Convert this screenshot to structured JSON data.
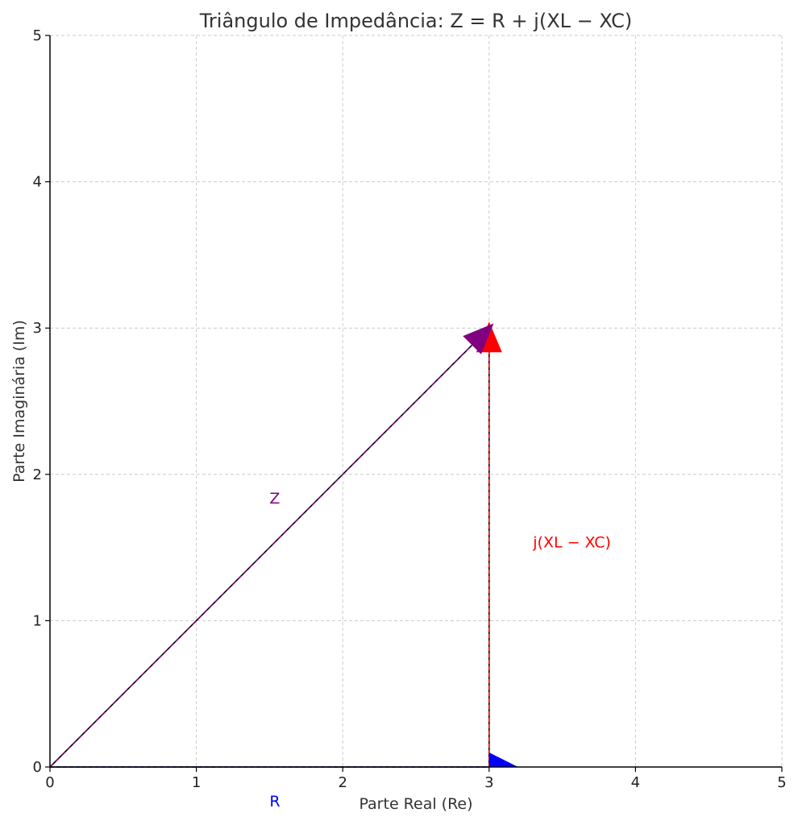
{
  "chart_data": {
    "type": "line",
    "title": "Triângulo de Impedância: Z = R + j(XL − XC)",
    "xlabel": "Parte Real (Re)",
    "ylabel": "Parte Imaginária (Im)",
    "xlim": [
      0,
      5
    ],
    "ylim": [
      0,
      5
    ],
    "xticks": [
      "0",
      "1",
      "2",
      "3",
      "4",
      "5"
    ],
    "yticks": [
      "0",
      "1",
      "2",
      "3",
      "4",
      "5"
    ],
    "grid": true,
    "vectors": [
      {
        "label": "R",
        "from": [
          0,
          0
        ],
        "to": [
          3,
          0
        ],
        "color": "#0000ff",
        "style": "dashed"
      },
      {
        "label": "j(XL − XC)",
        "from": [
          3,
          0
        ],
        "to": [
          3,
          3
        ],
        "color": "#ff0000",
        "style": "dashed"
      },
      {
        "label": "Z",
        "from": [
          0,
          0
        ],
        "to": [
          3,
          3
        ],
        "color": "#800080",
        "style": "solid"
      }
    ],
    "annotations": [
      {
        "text": "Z",
        "x": 1.5,
        "y": 1.8,
        "color": "#800080"
      },
      {
        "text": "j(XL − XC)",
        "x": 3.3,
        "y": 1.5,
        "color": "#ff0000"
      },
      {
        "text": "R",
        "x": 1.5,
        "y": -0.27,
        "color": "#0000ff"
      }
    ]
  }
}
